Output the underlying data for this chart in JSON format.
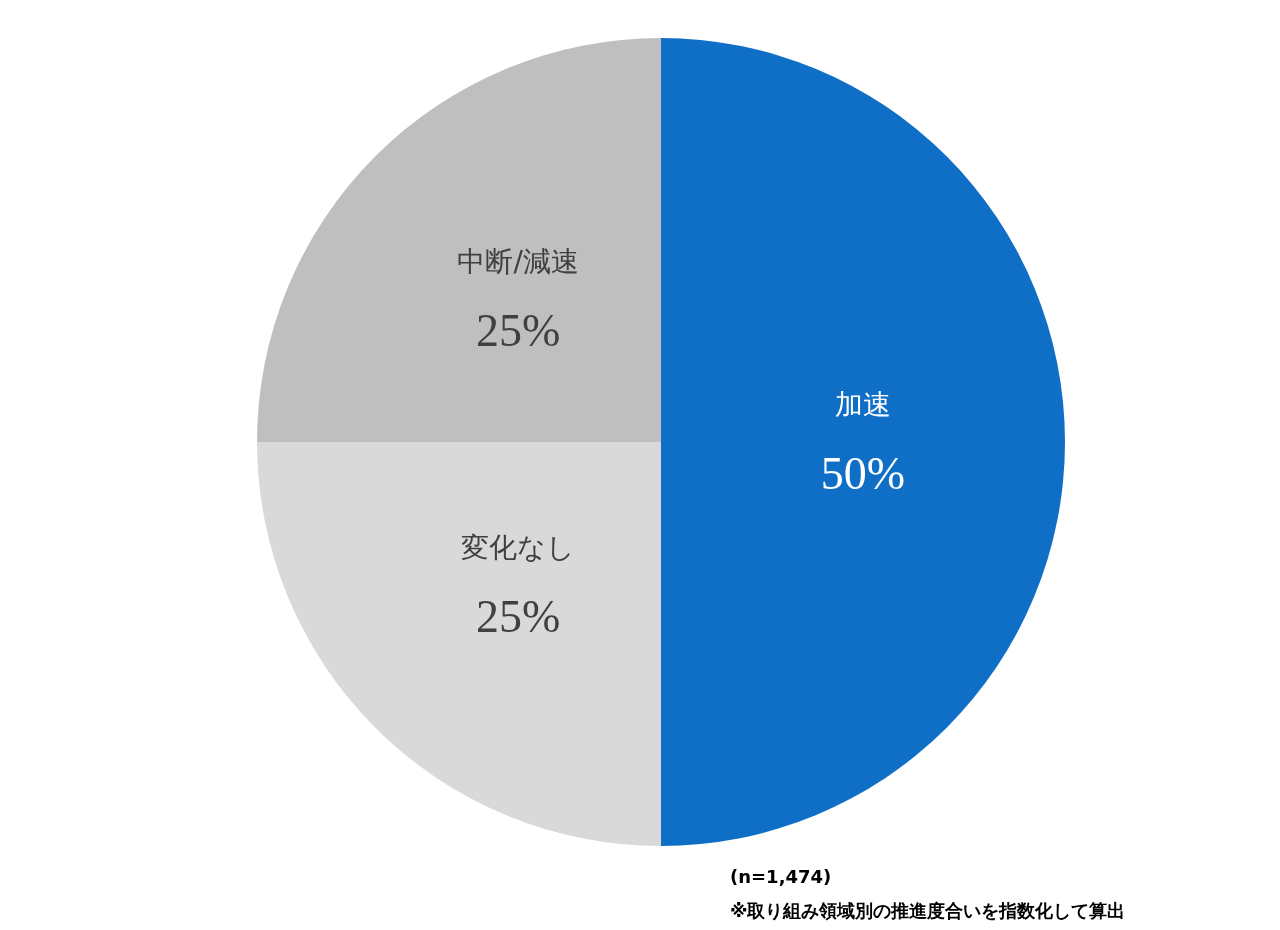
{
  "chart_data": {
    "type": "pie",
    "categories": [
      "加速",
      "変化なし",
      "中断/減速"
    ],
    "values": [
      50,
      25,
      25
    ],
    "colors": [
      "#0f6fc6",
      "#d9d9d9",
      "#bfbfbf"
    ],
    "value_labels": [
      "50%",
      "25%",
      "25%"
    ],
    "legend": false,
    "annotations": [
      "(n=1,474)",
      "※取り組み領域別の推進度合いを指数化して算出"
    ]
  }
}
